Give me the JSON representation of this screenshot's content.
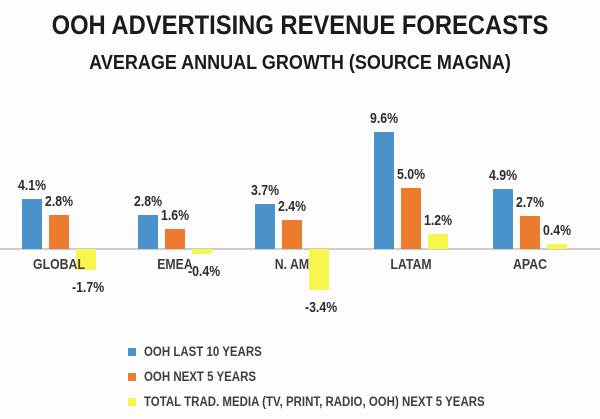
{
  "header": {
    "title": "OOH ADVERTISING REVENUE FORECASTS",
    "subtitle": "AVERAGE ANNUAL GROWTH (SOURCE MAGNA)"
  },
  "chart_data": {
    "type": "bar",
    "title": "OOH ADVERTISING REVENUE FORECASTS",
    "subtitle": "AVERAGE ANNUAL GROWTH (SOURCE MAGNA)",
    "unit": "%",
    "categories": [
      "GLOBAL",
      "EMEA",
      "N. AM",
      "LATAM",
      "APAC"
    ],
    "series": [
      {
        "name": "OOH LAST 10 YEARS",
        "color": "#4a92cb",
        "values": [
          4.1,
          2.8,
          3.7,
          9.6,
          4.9
        ]
      },
      {
        "name": "OOH NEXT 5 YEARS",
        "color": "#ed7b2e",
        "values": [
          2.8,
          1.6,
          2.4,
          5.0,
          2.7
        ]
      },
      {
        "name": "TOTAL TRAD. MEDIA (TV, PRINT, RADIO, OOH) NEXT 5 YEARS",
        "color": "#f6f64d",
        "values": [
          -1.7,
          -0.4,
          -3.4,
          1.2,
          0.4
        ]
      }
    ],
    "ylim": [
      -3.4,
      9.6
    ],
    "grid": false,
    "y_axis_visible": false,
    "data_labels": true,
    "legend_position": "bottom-left"
  },
  "colors": {
    "background": "#fdfdfd",
    "axis_line": "#cdcdcd",
    "title_text": "#1b1b1b",
    "label_text": "#2d2d2d"
  }
}
